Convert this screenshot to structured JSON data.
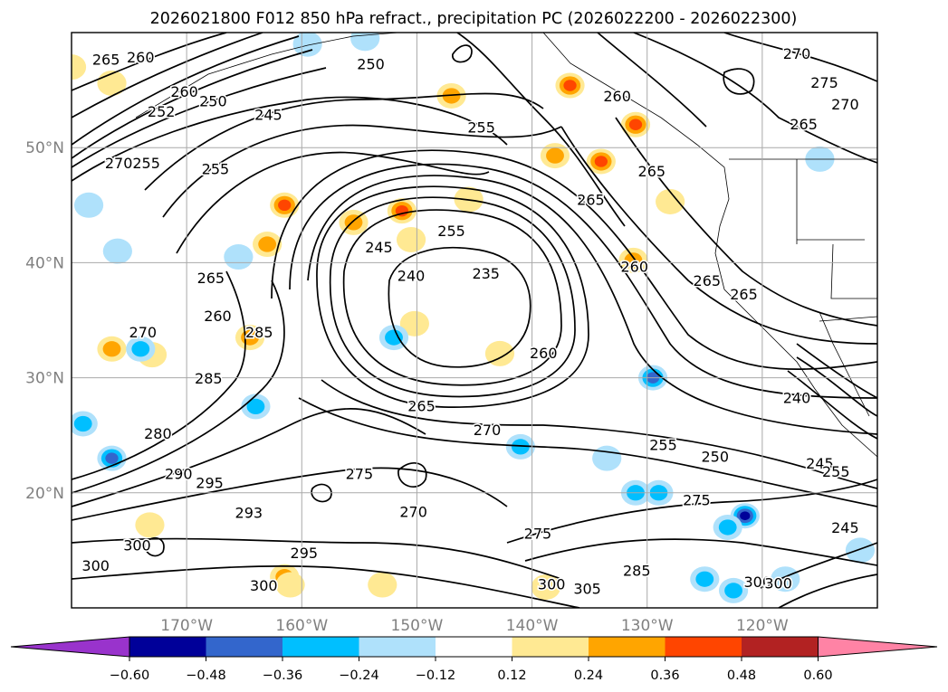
{
  "chart_data": {
    "type": "contour",
    "title": "2026021800 F012 850 hPa refract., precipitation PC (2026022200 - 2026022300)",
    "x_ticks": [
      "170°W",
      "160°W",
      "150°W",
      "140°W",
      "130°W",
      "120°W"
    ],
    "x_tick_values": [
      -170,
      -160,
      -150,
      -140,
      -130,
      -120
    ],
    "y_ticks": [
      "20°N",
      "30°N",
      "40°N",
      "50°N"
    ],
    "y_tick_values": [
      20,
      30,
      40,
      50
    ],
    "xlim": [
      -180,
      -110
    ],
    "ylim": [
      10,
      60
    ],
    "grid": true,
    "contour_labels": [
      {
        "text": "265",
        "lon": -177,
        "lat": 57.6
      },
      {
        "text": "260",
        "lon": -174,
        "lat": 57.8
      },
      {
        "text": "250",
        "lon": -154,
        "lat": 57.2
      },
      {
        "text": "270",
        "lon": -117,
        "lat": 58.1
      },
      {
        "text": "275",
        "lon": -114.6,
        "lat": 55.6
      },
      {
        "text": "270",
        "lon": -112.8,
        "lat": 53.7
      },
      {
        "text": "265",
        "lon": -116.4,
        "lat": 52.0
      },
      {
        "text": "255",
        "lon": -144.4,
        "lat": 51.7
      },
      {
        "text": "260",
        "lon": -132.6,
        "lat": 54.4
      },
      {
        "text": "265",
        "lon": -129.6,
        "lat": 47.9
      },
      {
        "text": "265",
        "lon": -134.9,
        "lat": 45.4
      },
      {
        "text": "260",
        "lon": -131.1,
        "lat": 39.6
      },
      {
        "text": "265",
        "lon": -124.8,
        "lat": 38.4
      },
      {
        "text": "265",
        "lon": -121.6,
        "lat": 37.2
      },
      {
        "text": "255",
        "lon": -173.5,
        "lat": 48.6
      },
      {
        "text": "252",
        "lon": -172.2,
        "lat": 53.1
      },
      {
        "text": "260",
        "lon": -170.2,
        "lat": 54.8
      },
      {
        "text": "250",
        "lon": -167.7,
        "lat": 54.0
      },
      {
        "text": "245",
        "lon": -162.9,
        "lat": 52.8
      },
      {
        "text": "255",
        "lon": -167.5,
        "lat": 48.1
      },
      {
        "text": "270",
        "lon": -175.9,
        "lat": 48.6
      },
      {
        "text": "245",
        "lon": -153.3,
        "lat": 41.3
      },
      {
        "text": "240",
        "lon": -150.5,
        "lat": 38.8
      },
      {
        "text": "255",
        "lon": -147,
        "lat": 42.7
      },
      {
        "text": "235",
        "lon": -144,
        "lat": 39.0
      },
      {
        "text": "265",
        "lon": -167.9,
        "lat": 38.6
      },
      {
        "text": "260",
        "lon": -167.3,
        "lat": 35.3
      },
      {
        "text": "270",
        "lon": -173.8,
        "lat": 33.9
      },
      {
        "text": "285",
        "lon": -163.7,
        "lat": 33.9
      },
      {
        "text": "285",
        "lon": -168.1,
        "lat": 29.9
      },
      {
        "text": "280",
        "lon": -172.5,
        "lat": 25.1
      },
      {
        "text": "290",
        "lon": -170.7,
        "lat": 21.6
      },
      {
        "text": "295",
        "lon": -168,
        "lat": 20.8
      },
      {
        "text": "275",
        "lon": -155,
        "lat": 21.6
      },
      {
        "text": "260",
        "lon": -139,
        "lat": 32.1
      },
      {
        "text": "265",
        "lon": -149.6,
        "lat": 27.5
      },
      {
        "text": "270",
        "lon": -143.9,
        "lat": 25.4
      },
      {
        "text": "255",
        "lon": -128.6,
        "lat": 24.1
      },
      {
        "text": "250",
        "lon": -124.1,
        "lat": 23.1
      },
      {
        "text": "275",
        "lon": -125.7,
        "lat": 19.3
      },
      {
        "text": "240",
        "lon": -117,
        "lat": 28.2
      },
      {
        "text": "245",
        "lon": -115,
        "lat": 22.5
      },
      {
        "text": "255",
        "lon": -113.6,
        "lat": 21.8
      },
      {
        "text": "245",
        "lon": -112.8,
        "lat": 16.9
      },
      {
        "text": "300",
        "lon": -177.9,
        "lat": 13.6
      },
      {
        "text": "300",
        "lon": -174.3,
        "lat": 15.4
      },
      {
        "text": "295",
        "lon": -159.8,
        "lat": 14.7
      },
      {
        "text": "300",
        "lon": -163.3,
        "lat": 11.9
      },
      {
        "text": "293",
        "lon": -164.6,
        "lat": 18.2
      },
      {
        "text": "270",
        "lon": -150.3,
        "lat": 18.3
      },
      {
        "text": "275",
        "lon": -139.5,
        "lat": 16.4
      },
      {
        "text": "300",
        "lon": -138.3,
        "lat": 12.0
      },
      {
        "text": "305",
        "lon": -135.2,
        "lat": 11.6
      },
      {
        "text": "285",
        "lon": -130.9,
        "lat": 13.2
      },
      {
        "text": "300",
        "lon": -120.4,
        "lat": 12.2
      },
      {
        "text": "300",
        "lon": -118.6,
        "lat": 12.1
      }
    ],
    "precip_blobs": [
      {
        "lon": -161.5,
        "lat": 45.0,
        "value": 0.4
      },
      {
        "lon": -163.0,
        "lat": 41.6,
        "value": 0.3
      },
      {
        "lon": -155.5,
        "lat": 43.5,
        "value": 0.28
      },
      {
        "lon": -151.3,
        "lat": 44.5,
        "value": 0.36
      },
      {
        "lon": -150.5,
        "lat": 42.0,
        "value": 0.2
      },
      {
        "lon": -145.5,
        "lat": 45.5,
        "value": 0.2
      },
      {
        "lon": -136.7,
        "lat": 55.4,
        "value": 0.38
      },
      {
        "lon": -134.0,
        "lat": 48.8,
        "value": 0.38
      },
      {
        "lon": -138.0,
        "lat": 49.3,
        "value": 0.3
      },
      {
        "lon": -131.0,
        "lat": 52.0,
        "value": 0.36
      },
      {
        "lon": -131.2,
        "lat": 40.2,
        "value": 0.28
      },
      {
        "lon": -147.0,
        "lat": 54.5,
        "value": 0.25
      },
      {
        "lon": -176.5,
        "lat": 32.5,
        "value": 0.25
      },
      {
        "lon": -164.5,
        "lat": 33.5,
        "value": 0.3
      },
      {
        "lon": -128.0,
        "lat": 45.3,
        "value": 0.18
      },
      {
        "lon": -142.8,
        "lat": 32.1,
        "value": 0.2
      },
      {
        "lon": -150.2,
        "lat": 34.7,
        "value": 0.16
      },
      {
        "lon": -176.5,
        "lat": 55.6,
        "value": 0.15
      },
      {
        "lon": -180.0,
        "lat": 57.0,
        "value": 0.15
      },
      {
        "lon": -161.5,
        "lat": 12.7,
        "value": 0.25
      },
      {
        "lon": -173.2,
        "lat": 17.2,
        "value": 0.18
      },
      {
        "lon": -173.0,
        "lat": 32.0,
        "value": 0.18
      },
      {
        "lon": -138.8,
        "lat": 11.8,
        "value": 0.18
      },
      {
        "lon": -153.0,
        "lat": 12.0,
        "value": 0.16
      },
      {
        "lon": -176.5,
        "lat": 23.0,
        "value": -0.4
      },
      {
        "lon": -179.0,
        "lat": 26.0,
        "value": -0.3
      },
      {
        "lon": -164.0,
        "lat": 27.5,
        "value": -0.3
      },
      {
        "lon": -174.0,
        "lat": 32.5,
        "value": -0.25
      },
      {
        "lon": -129.5,
        "lat": 30.0,
        "value": -0.45
      },
      {
        "lon": -129.0,
        "lat": 20.0,
        "value": -0.33
      },
      {
        "lon": -131.0,
        "lat": 20.0,
        "value": -0.3
      },
      {
        "lon": -121.5,
        "lat": 18.0,
        "value": -0.5
      },
      {
        "lon": -123.0,
        "lat": 17.0,
        "value": -0.35
      },
      {
        "lon": -141.0,
        "lat": 24.0,
        "value": -0.25
      },
      {
        "lon": -152.0,
        "lat": 33.5,
        "value": -0.25
      },
      {
        "lon": -122.5,
        "lat": 11.5,
        "value": -0.3
      },
      {
        "lon": -125.0,
        "lat": 12.5,
        "value": -0.25
      },
      {
        "lon": -154.5,
        "lat": 59.5,
        "value": -0.2
      },
      {
        "lon": -159.5,
        "lat": 59.0,
        "value": -0.15
      },
      {
        "lon": -178.5,
        "lat": 45.0,
        "value": -0.18
      },
      {
        "lon": -176.0,
        "lat": 41.0,
        "value": -0.2
      },
      {
        "lon": -133.5,
        "lat": 23.0,
        "value": -0.18
      },
      {
        "lon": -165.5,
        "lat": 40.5,
        "value": -0.18
      },
      {
        "lon": -115.0,
        "lat": 49.0,
        "value": -0.15
      },
      {
        "lon": -118.0,
        "lat": 12.5,
        "value": -0.2
      },
      {
        "lon": -111.5,
        "lat": 15.0,
        "value": -0.18
      },
      {
        "lon": -161.0,
        "lat": 12.0,
        "value": 0.2
      }
    ],
    "colorbar": {
      "ticks": [
        "−0.60",
        "−0.48",
        "−0.36",
        "−0.24",
        "−0.12",
        "0.12",
        "0.24",
        "0.36",
        "0.48",
        "0.60"
      ],
      "colors": [
        "#9933cc",
        "#000099",
        "#3366cc",
        "#00bfff",
        "#afe1fb",
        "#ffffff",
        "#ffe993",
        "#ffa500",
        "#ff4500",
        "#b22222",
        "#ff83a5"
      ],
      "extend": "both"
    },
    "contour_color": "#000000",
    "frame_color": "#000000",
    "tick_label_color": "#808080"
  }
}
